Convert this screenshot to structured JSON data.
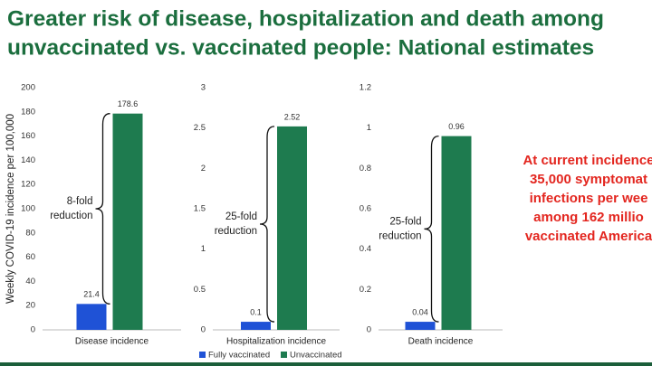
{
  "title": [
    "Greater risk of disease, hospitalization and death among",
    "unvaccinated vs. vaccinated people: National estimates"
  ],
  "side_note": [
    "At current incidence",
    "35,000 symptomat",
    "infections per wee",
    "among 162 millio",
    "vaccinated America"
  ],
  "chart_data": [
    {
      "type": "bar",
      "y_label": "Weekly COVID-19 incidence per 100,000",
      "categories": [
        "Disease incidence"
      ],
      "series": [
        {
          "color": "#1f52d6",
          "values": [
            21.4
          ]
        },
        {
          "color": "#1e7b4f",
          "values": [
            178.6
          ]
        }
      ],
      "ylim": [
        0,
        200
      ],
      "yticks": [
        0,
        20,
        40,
        60,
        80,
        100,
        120,
        140,
        160,
        180,
        200
      ],
      "annotation": [
        "8-fold",
        "reduction"
      ]
    },
    {
      "type": "bar",
      "categories": [
        "Hospitalization incidence"
      ],
      "series": [
        {
          "name": "Fully vaccinated",
          "color": "#1f52d6",
          "values": [
            0.1
          ]
        },
        {
          "name": "Unvaccinated",
          "color": "#1e7b4f",
          "values": [
            2.52
          ]
        }
      ],
      "ylim": [
        0,
        3
      ],
      "yticks": [
        0,
        0.5,
        1,
        1.5,
        2,
        2.5,
        3
      ],
      "annotation": [
        "25-fold",
        "reduction"
      ],
      "legend": "bottom"
    },
    {
      "type": "bar",
      "categories": [
        "Death incidence"
      ],
      "series": [
        {
          "color": "#1f52d6",
          "values": [
            0.04
          ]
        },
        {
          "color": "#1e7b4f",
          "values": [
            0.96
          ]
        }
      ],
      "ylim": [
        0,
        1.2
      ],
      "yticks": [
        0,
        0.2,
        0.4,
        0.6,
        0.8,
        1,
        1.2
      ],
      "annotation": [
        "25-fold",
        "reduction"
      ]
    }
  ]
}
